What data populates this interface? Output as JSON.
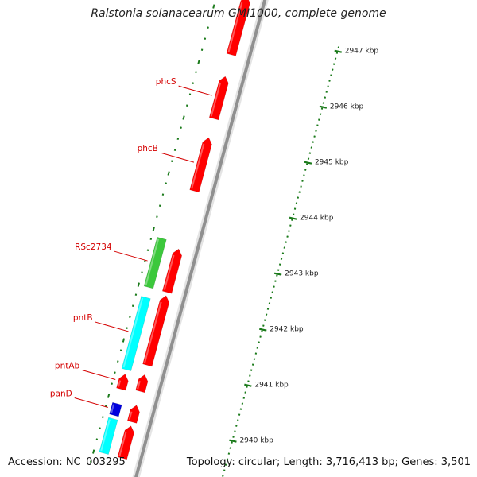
{
  "title": "Ralstonia solanacearum GMI1000, complete genome",
  "footer": {
    "accession": "Accession: NC_003295",
    "topology": "Topology: circular; Length: 3,716,413 bp; Genes: 3,501"
  },
  "colors": {
    "gene_red": "#ff0000",
    "gene_green": "#3cc83c",
    "gene_cyan": "#00ffff",
    "gene_blue": "#0000dd",
    "label_red": "#d40000",
    "tick_green": "#1a7a1a",
    "backbone_gray": "#909090"
  },
  "ruler": [
    {
      "kbp": 2947,
      "label": "2947 kbp"
    },
    {
      "kbp": 2946,
      "label": "2946 kbp"
    },
    {
      "kbp": 2945,
      "label": "2945 kbp"
    },
    {
      "kbp": 2944,
      "label": "2944 kbp"
    },
    {
      "kbp": 2943,
      "label": "2943 kbp"
    },
    {
      "kbp": 2942,
      "label": "2942 kbp"
    },
    {
      "kbp": 2941,
      "label": "2941 kbp"
    },
    {
      "kbp": 2940,
      "label": "2940 kbp"
    }
  ],
  "genes": [
    {
      "name": "phcS",
      "label": "phcS",
      "start": 2945.3,
      "end": 2946.06,
      "lane": "inner",
      "color": "red"
    },
    {
      "name": "phcB",
      "label": "phcB",
      "start": 2944.0,
      "end": 2944.96,
      "lane": "inner",
      "color": "red"
    },
    {
      "name": "RSc2734",
      "label": "RSc2734",
      "start": 2942.18,
      "end": 2943.06,
      "lane": "outer",
      "color": "green"
    },
    {
      "name": "pntB",
      "label": "pntB",
      "start": 2940.7,
      "end": 2942.0,
      "lane": "outer",
      "color": "cyan"
    },
    {
      "name": "pntAb",
      "label": "pntAb",
      "start": 2940.35,
      "end": 2940.62,
      "lane": "outer",
      "color": "red"
    },
    {
      "name": "panD",
      "label": "panD",
      "start": 2939.88,
      "end": 2940.09,
      "lane": "outer",
      "color": "blue"
    }
  ],
  "unlabeled_genes": [
    {
      "start": 2946.45,
      "end": 2947.5,
      "lane": "inner",
      "color": "red"
    },
    {
      "start": 2942.18,
      "end": 2942.96,
      "lane": "inner",
      "color": "red"
    },
    {
      "start": 2940.87,
      "end": 2942.12,
      "lane": "inner",
      "color": "red"
    },
    {
      "start": 2940.4,
      "end": 2940.7,
      "lane": "inner",
      "color": "red"
    },
    {
      "start": 2939.85,
      "end": 2940.15,
      "lane": "inner",
      "color": "red"
    },
    {
      "start": 2939.2,
      "end": 2939.78,
      "lane": "inner",
      "color": "red"
    },
    {
      "start": 2939.2,
      "end": 2939.82,
      "lane": "outer",
      "color": "cyan"
    }
  ]
}
